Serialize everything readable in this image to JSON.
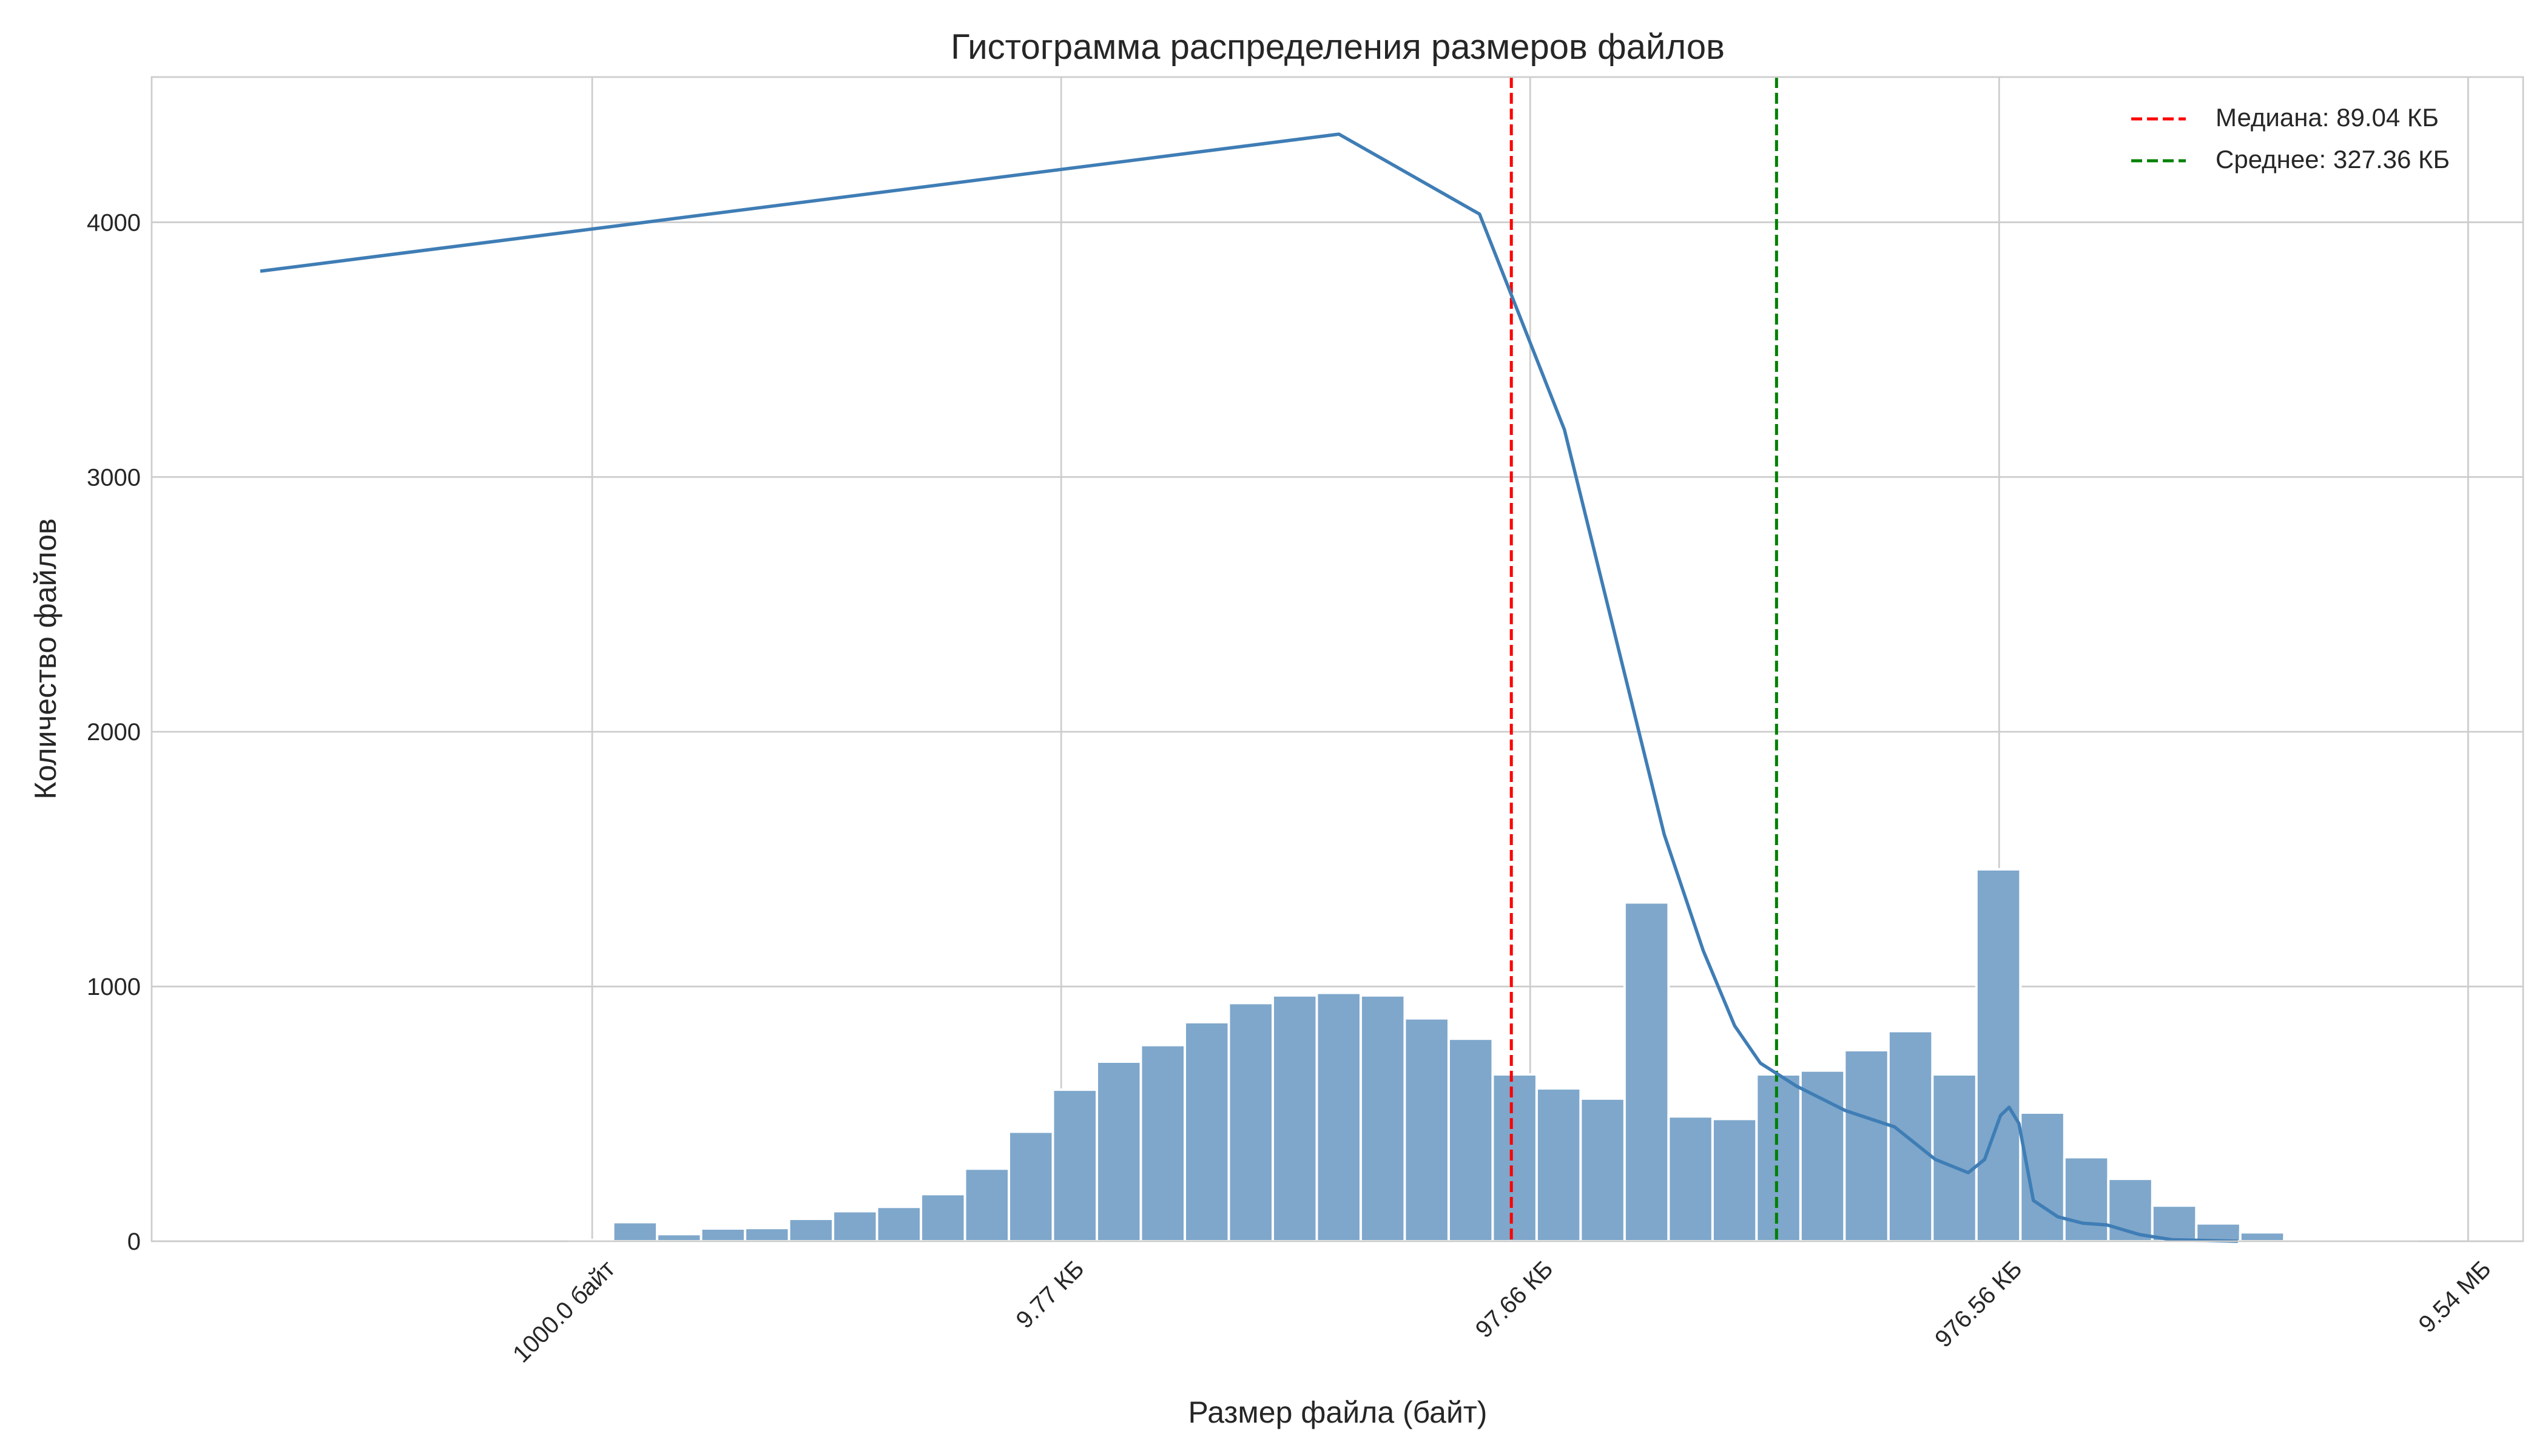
{
  "chart_data": {
    "type": "bar",
    "title": "Гистограмма распределения размеров файлов",
    "xlabel": "Размер файла (байт)",
    "ylabel": "Количество файлов",
    "x_scale": "log",
    "xlim_bytes": [
      115,
      13100000
    ],
    "ylim": [
      0,
      4570
    ],
    "grid": true,
    "legend_placement": "top-right",
    "x_ticks": [
      {
        "value": 1000,
        "label": "1000.0 байт"
      },
      {
        "value": 10000,
        "label": "9.77 КБ"
      },
      {
        "value": 100000,
        "label": "97.66 КБ"
      },
      {
        "value": 1000000,
        "label": "976.56 КБ"
      },
      {
        "value": 10000000,
        "label": "9.54 МБ"
      }
    ],
    "y_ticks": [
      {
        "value": 0,
        "label": "0"
      },
      {
        "value": 1000,
        "label": "1000"
      },
      {
        "value": 2000,
        "label": "2000"
      },
      {
        "value": 3000,
        "label": "3000"
      },
      {
        "value": 4000,
        "label": "4000"
      }
    ],
    "histogram": {
      "first_bin_edge_bytes": 893,
      "bin_ratio": 1.241,
      "counts": [
        5,
        75,
        28,
        50,
        52,
        88,
        118,
        135,
        185,
        285,
        430,
        595,
        705,
        770,
        860,
        935,
        965,
        975,
        965,
        875,
        795,
        655,
        600,
        560,
        1330,
        490,
        480,
        655,
        670,
        750,
        825,
        655,
        1460,
        505,
        330,
        245,
        140,
        70,
        35,
        8,
        5,
        3
      ],
      "color": "#7ea7cb"
    },
    "kde_line": {
      "color": "#3f7db5",
      "points": [
        [
          196,
          3808
        ],
        [
          39100,
          4346
        ],
        [
          78000,
          4032
        ],
        [
          118300,
          3186
        ],
        [
          193200,
          1596
        ],
        [
          233900,
          1141
        ],
        [
          272900,
          846
        ],
        [
          309700,
          699
        ],
        [
          369800,
          609
        ],
        [
          469900,
          513
        ],
        [
          598400,
          449
        ],
        [
          731100,
          321
        ],
        [
          859000,
          269
        ],
        [
          931100,
          321
        ],
        [
          1007000,
          494
        ],
        [
          1050000,
          526
        ],
        [
          1102000,
          462
        ],
        [
          1183000,
          160
        ],
        [
          1334000,
          96
        ],
        [
          1507000,
          71
        ],
        [
          1698000,
          64
        ],
        [
          1995000,
          26
        ],
        [
          2339000,
          6
        ],
        [
          3228000,
          0
        ]
      ]
    },
    "reference_lines": [
      {
        "name": "median",
        "value_bytes": 91177,
        "label": "Медиана: 89.04 КБ",
        "color": "#ff0000"
      },
      {
        "name": "mean",
        "value_bytes": 335217,
        "label": "Среднее: 327.36 КБ",
        "color": "#008000"
      }
    ]
  }
}
